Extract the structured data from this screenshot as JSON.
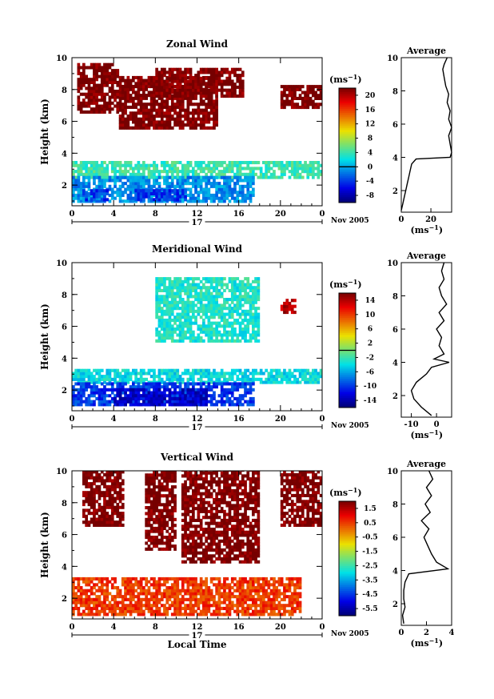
{
  "figure": {
    "panels": [
      {
        "id": "zonal",
        "title": "Zonal Wind",
        "ylabel": "Height (km)",
        "xticks": [
          "0",
          "4",
          "8",
          "12",
          "16",
          "20",
          "0"
        ],
        "yticks": [
          "2",
          "4",
          "6",
          "8",
          "10"
        ],
        "day_label": "17",
        "month_label": "Nov 2005",
        "colorbar": {
          "unit_label": "(ms-1)",
          "ticks": [
            "20",
            "16",
            "12",
            "8",
            "4",
            "0",
            "-4",
            "-8"
          ],
          "range": [
            -10,
            22
          ],
          "zero_line": 0
        },
        "average": {
          "title": "Average",
          "unit_label": "(ms-1)",
          "yticks": [
            "2",
            "4",
            "6",
            "8",
            "10"
          ],
          "xticks": [
            "0",
            "20"
          ]
        }
      },
      {
        "id": "meridional",
        "title": "Meridional Wind",
        "ylabel": "Height (km)",
        "xticks": [
          "0",
          "4",
          "8",
          "12",
          "16",
          "20",
          "0"
        ],
        "yticks": [
          "2",
          "4",
          "6",
          "8",
          "10"
        ],
        "day_label": "17",
        "month_label": "Nov 2005",
        "colorbar": {
          "unit_label": "(ms-1)",
          "ticks": [
            "14",
            "10",
            "6",
            "2",
            "-2",
            "-6",
            "-10",
            "-14"
          ],
          "range": [
            -16,
            16
          ],
          "zero_line": 0
        },
        "average": {
          "title": "Average",
          "unit_label": "(ms-1)",
          "yticks": [
            "2",
            "4",
            "6",
            "8",
            "10"
          ],
          "xticks": [
            "-10",
            "0"
          ]
        }
      },
      {
        "id": "vertical",
        "title": "Vertical Wind",
        "ylabel": "Height (km)",
        "xlabel": "Local Time",
        "xticks": [
          "0",
          "4",
          "8",
          "12",
          "16",
          "20",
          "0"
        ],
        "yticks": [
          "2",
          "4",
          "6",
          "8",
          "10"
        ],
        "day_label": "17",
        "month_label": "Nov 2005",
        "colorbar": {
          "unit_label": "(ms-1)",
          "ticks": [
            "1.5",
            "0.5",
            "-0.5",
            "-1.5",
            "-2.5",
            "-3.5",
            "-4.5",
            "-5.5"
          ],
          "range": [
            -6,
            2
          ]
        },
        "average": {
          "title": "Average",
          "unit_label": "(ms-1)",
          "yticks": [
            "2",
            "4",
            "6",
            "8",
            "10"
          ],
          "xticks": [
            "0",
            "2",
            "4"
          ]
        }
      }
    ]
  },
  "chart_data": [
    {
      "type": "heatmap",
      "title": "Zonal Wind",
      "xlabel": "",
      "ylabel": "Height (km)",
      "xlim": [
        0,
        24
      ],
      "ylim": [
        0.7,
        10
      ],
      "color_range": [
        -10,
        22
      ],
      "colormap": "jet",
      "regions": [
        {
          "t": [
            0,
            24
          ],
          "h": [
            2.4,
            3.4
          ],
          "value": 4
        },
        {
          "t": [
            0,
            17.5
          ],
          "h": [
            0.9,
            2.4
          ],
          "value": -1
        },
        {
          "t": [
            1,
            3.5
          ],
          "h": [
            1.0,
            1.6
          ],
          "value": -4
        },
        {
          "t": [
            6,
            11
          ],
          "h": [
            1.0,
            1.6
          ],
          "value": -4
        },
        {
          "t": [
            4.5,
            14
          ],
          "h": [
            5.5,
            8.7
          ],
          "value": 22
        },
        {
          "t": [
            8,
            16.5
          ],
          "h": [
            7.5,
            9.2
          ],
          "value": 22
        },
        {
          "t": [
            0.5,
            4.5
          ],
          "h": [
            6.5,
            9.5
          ],
          "value": 22
        },
        {
          "t": [
            20,
            24
          ],
          "h": [
            6.8,
            8.2
          ],
          "value": 22
        }
      ],
      "average_profile": {
        "xlim": [
          0,
          34
        ],
        "height": [
          0.8,
          1.2,
          1.6,
          2.0,
          2.4,
          2.8,
          3.2,
          3.6,
          3.9,
          4.0,
          4.3,
          4.8,
          5.3,
          5.8,
          6.3,
          6.8,
          7.3,
          7.8,
          8.3,
          8.8,
          9.3,
          9.6,
          10.0
        ],
        "wind": [
          0,
          1,
          2,
          3,
          4,
          5,
          6,
          7,
          10,
          33,
          34,
          33,
          32,
          34,
          32,
          33,
          31,
          32,
          30,
          29,
          28,
          29,
          31
        ]
      }
    },
    {
      "type": "heatmap",
      "title": "Meridional Wind",
      "xlabel": "",
      "ylabel": "Height (km)",
      "xlim": [
        0,
        24
      ],
      "ylim": [
        0.7,
        10
      ],
      "color_range": [
        -16,
        16
      ],
      "colormap": "jet",
      "regions": [
        {
          "t": [
            0,
            24
          ],
          "h": [
            2.4,
            3.2
          ],
          "value": -4
        },
        {
          "t": [
            0,
            17.5
          ],
          "h": [
            1.0,
            2.4
          ],
          "value": -10
        },
        {
          "t": [
            4,
            13
          ],
          "h": [
            1.0,
            2.0
          ],
          "value": -13
        },
        {
          "t": [
            20,
            21.5
          ],
          "h": [
            6.8,
            7.6
          ],
          "value": 14
        },
        {
          "t": [
            8,
            18
          ],
          "h": [
            5.0,
            9.0
          ],
          "value": -3
        }
      ],
      "average_profile": {
        "xlim": [
          -14,
          6
        ],
        "height": [
          0.8,
          1.3,
          1.8,
          2.3,
          2.8,
          3.3,
          3.7,
          4.0,
          4.2,
          4.5,
          5.0,
          5.5,
          6.0,
          6.5,
          7.0,
          7.5,
          8.0,
          8.5,
          9.0,
          9.5,
          10.0
        ],
        "wind": [
          -2,
          -6,
          -9,
          -10,
          -8,
          -4,
          -2,
          5,
          -1,
          3,
          1,
          2,
          0,
          3,
          1,
          4,
          2,
          1,
          3,
          2,
          3
        ]
      }
    },
    {
      "type": "heatmap",
      "title": "Vertical Wind",
      "xlabel": "Local Time",
      "ylabel": "Height (km)",
      "xlim": [
        0,
        24
      ],
      "ylim": [
        0.7,
        10
      ],
      "color_range": [
        -6,
        2
      ],
      "colormap": "jet",
      "regions": [
        {
          "t": [
            0,
            22
          ],
          "h": [
            0.9,
            3.3
          ],
          "value": 0.5
        },
        {
          "t": [
            10.5,
            18
          ],
          "h": [
            4.2,
            10
          ],
          "value": 2
        },
        {
          "t": [
            7,
            10
          ],
          "h": [
            5.0,
            10
          ],
          "value": 2
        },
        {
          "t": [
            1,
            5
          ],
          "h": [
            6.5,
            10
          ],
          "value": 2
        },
        {
          "t": [
            20,
            24
          ],
          "h": [
            6.5,
            10
          ],
          "value": 2
        }
      ],
      "average_profile": {
        "xlim": [
          0,
          4
        ],
        "height": [
          0.8,
          1.3,
          1.8,
          2.3,
          2.8,
          3.3,
          3.8,
          4.1,
          4.5,
          5.0,
          5.5,
          6.0,
          6.5,
          7.0,
          7.5,
          8.0,
          8.5,
          9.0,
          9.5,
          10.0
        ],
        "wind": [
          0.2,
          0.1,
          0.3,
          0.2,
          0.2,
          0.3,
          0.6,
          3.7,
          2.8,
          2.4,
          2.1,
          1.8,
          2.2,
          1.6,
          2.3,
          1.9,
          2.4,
          2.0,
          2.5,
          2.2
        ]
      }
    }
  ]
}
